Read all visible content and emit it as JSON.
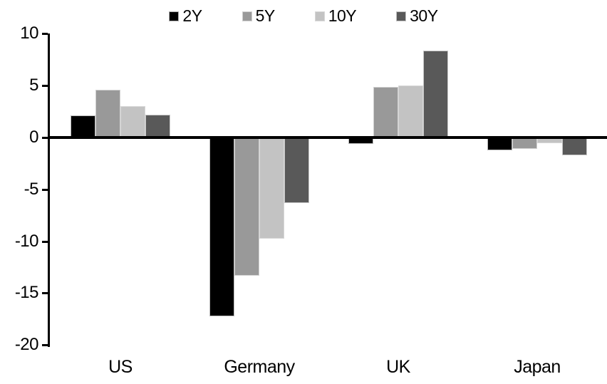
{
  "chart_data": {
    "type": "bar",
    "title": "",
    "xlabel": "",
    "ylabel": "",
    "categories": [
      "US",
      "Germany",
      "UK",
      "Japan"
    ],
    "series": [
      {
        "name": "2Y",
        "color": "#000000",
        "values": [
          2.1,
          -17.3,
          -0.7,
          -1.3
        ]
      },
      {
        "name": "5Y",
        "color": "#999999",
        "values": [
          4.6,
          -13.4,
          4.9,
          -1.2
        ]
      },
      {
        "name": "10Y",
        "color": "#c3c3c3",
        "values": [
          3.0,
          -9.8,
          5.0,
          -0.6
        ]
      },
      {
        "name": "30Y",
        "color": "#595959",
        "values": [
          2.2,
          -6.4,
          8.4,
          -1.8
        ]
      }
    ],
    "ylim": [
      -20,
      10
    ],
    "yticks": [
      10,
      5,
      0,
      -5,
      -10,
      -15,
      -20
    ],
    "grid": false,
    "legend_position": "top",
    "axis_color": "#000000",
    "background_color": "#ffffff"
  }
}
